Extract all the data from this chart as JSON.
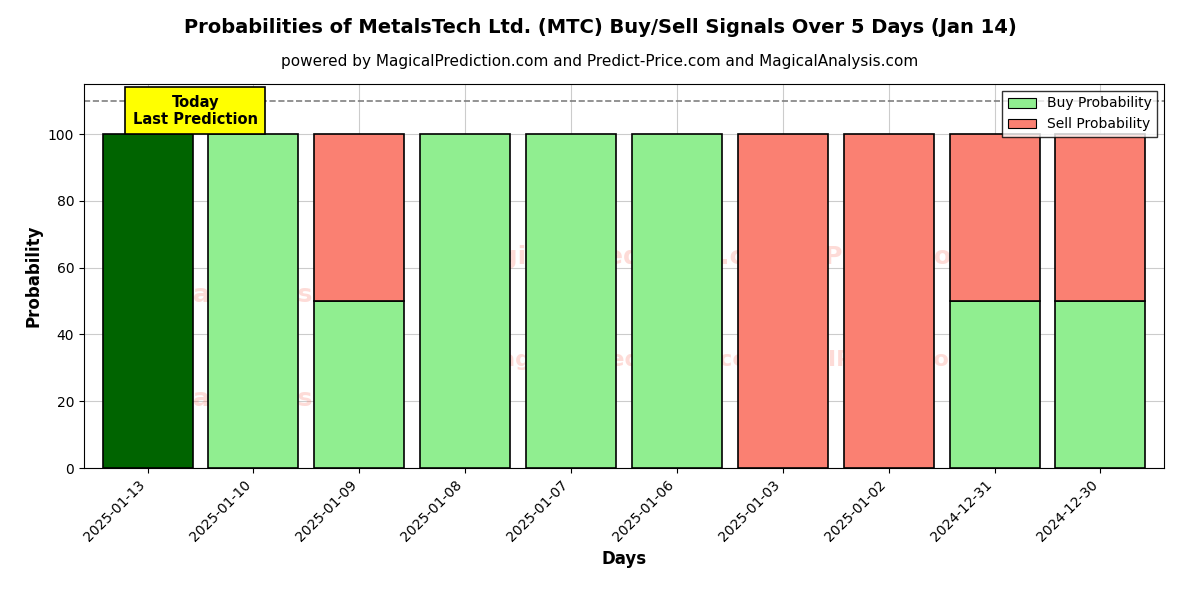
{
  "title": "Probabilities of MetalsTech Ltd. (MTC) Buy/Sell Signals Over 5 Days (Jan 14)",
  "subtitle": "powered by MagicalPrediction.com and Predict-Price.com and MagicalAnalysis.com",
  "xlabel": "Days",
  "ylabel": "Probability",
  "dates": [
    "2025-01-13",
    "2025-01-10",
    "2025-01-09",
    "2025-01-08",
    "2025-01-07",
    "2025-01-06",
    "2025-01-03",
    "2025-01-02",
    "2024-12-31",
    "2024-12-30"
  ],
  "buy_values": [
    100,
    100,
    50,
    100,
    100,
    100,
    0,
    0,
    50,
    50
  ],
  "sell_values": [
    0,
    0,
    50,
    0,
    0,
    0,
    100,
    100,
    50,
    50
  ],
  "today_bar_color": "#006400",
  "buy_color": "#90EE90",
  "sell_color": "#FA8072",
  "legend_buy_color": "#90EE90",
  "legend_sell_color": "#FA8072",
  "today_label": "Today\nLast Prediction",
  "today_label_bg": "#FFFF00",
  "dashed_line_y": 110,
  "ylim": [
    0,
    115
  ],
  "yticks": [
    0,
    20,
    40,
    60,
    80,
    100
  ],
  "background_color": "#ffffff",
  "grid_color": "#cccccc",
  "bar_edge_color": "black",
  "bar_edge_width": 1.2,
  "title_fontsize": 14,
  "subtitle_fontsize": 11,
  "label_fontsize": 12,
  "tick_fontsize": 10,
  "bar_width": 0.85,
  "watermark_texts": [
    "calAnalysis.co",
    "MagicalPrediction.com",
    "MagicallPrediction.com"
  ],
  "wm_color": "#FA8072",
  "wm_alpha": 0.25
}
